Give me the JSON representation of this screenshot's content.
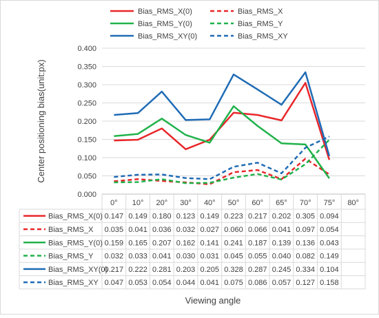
{
  "chart_data": {
    "type": "line",
    "title": "",
    "xlabel": "Viewing angle",
    "ylabel": "Center positioning bias(unit:px)",
    "ylim": [
      0,
      0.4
    ],
    "yticks": [
      "0.000",
      "0.050",
      "0.100",
      "0.150",
      "0.200",
      "0.250",
      "0.300",
      "0.350",
      "0.400"
    ],
    "grid": true,
    "legend": "top",
    "data_table": true,
    "categories": [
      "0°",
      "10°",
      "20°",
      "30°",
      "40°",
      "50°",
      "60°",
      "65°",
      "70°",
      "75°",
      "80°"
    ],
    "series": [
      {
        "name": "Bias_RMS_X(0)",
        "color": "#e8262a",
        "dash": false,
        "values": [
          0.147,
          0.149,
          0.18,
          0.123,
          0.149,
          0.223,
          0.217,
          0.202,
          0.305,
          0.094,
          null
        ],
        "labels": [
          "0.147",
          "0.149",
          "0.180",
          "0.123",
          "0.149",
          "0.223",
          "0.217",
          "0.202",
          "0.305",
          "0.094",
          ""
        ]
      },
      {
        "name": "Bias_RMS_X",
        "color": "#e8262a",
        "dash": true,
        "values": [
          0.035,
          0.041,
          0.036,
          0.032,
          0.027,
          0.06,
          0.066,
          0.041,
          0.097,
          0.054,
          null
        ],
        "labels": [
          "0.035",
          "0.041",
          "0.036",
          "0.032",
          "0.027",
          "0.060",
          "0.066",
          "0.041",
          "0.097",
          "0.054",
          ""
        ]
      },
      {
        "name": "Bias_RMS_Y(0)",
        "color": "#20b24a",
        "dash": false,
        "values": [
          0.159,
          0.165,
          0.207,
          0.162,
          0.141,
          0.241,
          0.187,
          0.139,
          0.136,
          0.043,
          null
        ],
        "labels": [
          "0.159",
          "0.165",
          "0.207",
          "0.162",
          "0.141",
          "0.241",
          "0.187",
          "0.139",
          "0.136",
          "0.043",
          ""
        ]
      },
      {
        "name": "Bias_RMS_Y",
        "color": "#20b24a",
        "dash": true,
        "values": [
          0.032,
          0.033,
          0.041,
          0.03,
          0.031,
          0.045,
          0.055,
          0.04,
          0.082,
          0.149,
          null
        ],
        "labels": [
          "0.032",
          "0.033",
          "0.041",
          "0.030",
          "0.031",
          "0.045",
          "0.055",
          "0.040",
          "0.082",
          "0.149",
          ""
        ]
      },
      {
        "name": "Bias_RMS_XY(0)",
        "color": "#1f6bb5",
        "dash": false,
        "values": [
          0.217,
          0.222,
          0.281,
          0.203,
          0.205,
          0.328,
          0.287,
          0.245,
          0.334,
          0.104,
          null
        ],
        "labels": [
          "0.217",
          "0.222",
          "0.281",
          "0.203",
          "0.205",
          "0.328",
          "0.287",
          "0.245",
          "0.334",
          "0.104",
          ""
        ]
      },
      {
        "name": "Bias_RMS_XY",
        "color": "#1f6bb5",
        "dash": true,
        "values": [
          0.047,
          0.053,
          0.054,
          0.044,
          0.041,
          0.075,
          0.086,
          0.057,
          0.127,
          0.158,
          null
        ],
        "labels": [
          "0.047",
          "0.053",
          "0.054",
          "0.044",
          "0.041",
          "0.075",
          "0.086",
          "0.057",
          "0.127",
          "0.158",
          ""
        ]
      }
    ]
  }
}
